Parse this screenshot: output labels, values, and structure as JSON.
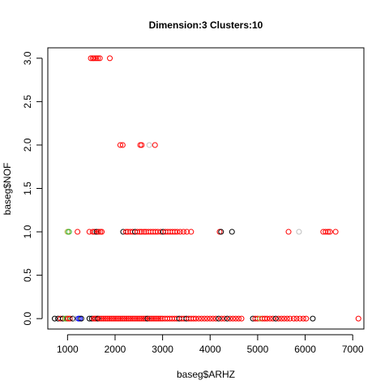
{
  "chart_data": {
    "type": "scatter",
    "title": "Dimension:3 Clusters:10",
    "xlabel": "baseg$ARHZ",
    "ylabel": "baseg$NOF",
    "xlim": [
      585,
      7235
    ],
    "ylim": [
      -0.12,
      3.12
    ],
    "x_ticks": [
      "1000",
      "2000",
      "3000",
      "4000",
      "5000",
      "6000",
      "7000"
    ],
    "x_tick_values": [
      1000,
      2000,
      3000,
      4000,
      5000,
      6000,
      7000
    ],
    "y_ticks": [
      "0.0",
      "0.5",
      "1.0",
      "1.5",
      "2.0",
      "2.5",
      "3.0"
    ],
    "y_tick_values": [
      0,
      0.5,
      1,
      1.5,
      2,
      2.5,
      3
    ],
    "grid": false,
    "marker": "open-circle",
    "colors": {
      "red": "#ff0000",
      "black": "#000000",
      "green": "#22b022",
      "blue": "#0000ff",
      "gray": "#bebebe",
      "olive": "#a0a020"
    },
    "points": [
      {
        "x": 1490,
        "y": 3,
        "c": "red"
      },
      {
        "x": 1530,
        "y": 3,
        "c": "red"
      },
      {
        "x": 1560,
        "y": 3,
        "c": "red"
      },
      {
        "x": 1600,
        "y": 3,
        "c": "red"
      },
      {
        "x": 1640,
        "y": 3,
        "c": "red"
      },
      {
        "x": 1680,
        "y": 3,
        "c": "red"
      },
      {
        "x": 1890,
        "y": 3,
        "c": "red"
      },
      {
        "x": 2110,
        "y": 2,
        "c": "red"
      },
      {
        "x": 2160,
        "y": 2,
        "c": "red"
      },
      {
        "x": 2530,
        "y": 2,
        "c": "red"
      },
      {
        "x": 2560,
        "y": 2,
        "c": "red"
      },
      {
        "x": 2720,
        "y": 2,
        "c": "gray"
      },
      {
        "x": 2840,
        "y": 2,
        "c": "red"
      },
      {
        "x": 1000,
        "y": 1,
        "c": "olive"
      },
      {
        "x": 1030,
        "y": 1,
        "c": "green"
      },
      {
        "x": 1210,
        "y": 1,
        "c": "red"
      },
      {
        "x": 1460,
        "y": 1,
        "c": "red"
      },
      {
        "x": 1530,
        "y": 1,
        "c": "red"
      },
      {
        "x": 1570,
        "y": 1,
        "c": "red"
      },
      {
        "x": 1610,
        "y": 1,
        "c": "black"
      },
      {
        "x": 1650,
        "y": 1,
        "c": "red"
      },
      {
        "x": 1690,
        "y": 1,
        "c": "red"
      },
      {
        "x": 1720,
        "y": 1,
        "c": "red"
      },
      {
        "x": 2170,
        "y": 1,
        "c": "black"
      },
      {
        "x": 2230,
        "y": 1,
        "c": "red"
      },
      {
        "x": 2270,
        "y": 1,
        "c": "red"
      },
      {
        "x": 2320,
        "y": 1,
        "c": "red"
      },
      {
        "x": 2370,
        "y": 1,
        "c": "red"
      },
      {
        "x": 2420,
        "y": 1,
        "c": "black"
      },
      {
        "x": 2470,
        "y": 1,
        "c": "red"
      },
      {
        "x": 2520,
        "y": 1,
        "c": "red"
      },
      {
        "x": 2560,
        "y": 1,
        "c": "red"
      },
      {
        "x": 2610,
        "y": 1,
        "c": "red"
      },
      {
        "x": 2650,
        "y": 1,
        "c": "red"
      },
      {
        "x": 2700,
        "y": 1,
        "c": "red"
      },
      {
        "x": 2750,
        "y": 1,
        "c": "red"
      },
      {
        "x": 2800,
        "y": 1,
        "c": "red"
      },
      {
        "x": 2850,
        "y": 1,
        "c": "red"
      },
      {
        "x": 2900,
        "y": 1,
        "c": "red"
      },
      {
        "x": 2960,
        "y": 1,
        "c": "red"
      },
      {
        "x": 3010,
        "y": 1,
        "c": "black"
      },
      {
        "x": 3060,
        "y": 1,
        "c": "red"
      },
      {
        "x": 3110,
        "y": 1,
        "c": "red"
      },
      {
        "x": 3160,
        "y": 1,
        "c": "red"
      },
      {
        "x": 3210,
        "y": 1,
        "c": "red"
      },
      {
        "x": 3260,
        "y": 1,
        "c": "red"
      },
      {
        "x": 3310,
        "y": 1,
        "c": "red"
      },
      {
        "x": 3370,
        "y": 1,
        "c": "red"
      },
      {
        "x": 3440,
        "y": 1,
        "c": "red"
      },
      {
        "x": 3510,
        "y": 1,
        "c": "red"
      },
      {
        "x": 3600,
        "y": 1,
        "c": "red"
      },
      {
        "x": 4200,
        "y": 1,
        "c": "red"
      },
      {
        "x": 4230,
        "y": 1,
        "c": "black"
      },
      {
        "x": 4460,
        "y": 1,
        "c": "black"
      },
      {
        "x": 5650,
        "y": 1,
        "c": "red"
      },
      {
        "x": 5870,
        "y": 1,
        "c": "gray"
      },
      {
        "x": 6380,
        "y": 1,
        "c": "red"
      },
      {
        "x": 6430,
        "y": 1,
        "c": "red"
      },
      {
        "x": 6480,
        "y": 1,
        "c": "red"
      },
      {
        "x": 6520,
        "y": 1,
        "c": "red"
      },
      {
        "x": 6640,
        "y": 1,
        "c": "red"
      },
      {
        "x": 730,
        "y": 0,
        "c": "black"
      },
      {
        "x": 800,
        "y": 0,
        "c": "black"
      },
      {
        "x": 850,
        "y": 0,
        "c": "red"
      },
      {
        "x": 900,
        "y": 0,
        "c": "black"
      },
      {
        "x": 950,
        "y": 0,
        "c": "olive"
      },
      {
        "x": 980,
        "y": 0,
        "c": "green"
      },
      {
        "x": 1010,
        "y": 0,
        "c": "red"
      },
      {
        "x": 1050,
        "y": 0,
        "c": "red"
      },
      {
        "x": 1110,
        "y": 0,
        "c": "black"
      },
      {
        "x": 1160,
        "y": 0,
        "c": "gray"
      },
      {
        "x": 1230,
        "y": 0,
        "c": "blue"
      },
      {
        "x": 1260,
        "y": 0,
        "c": "blue"
      },
      {
        "x": 1290,
        "y": 0,
        "c": "black"
      },
      {
        "x": 1460,
        "y": 0,
        "c": "black"
      },
      {
        "x": 1510,
        "y": 0,
        "c": "black"
      },
      {
        "x": 1550,
        "y": 0,
        "c": "red"
      },
      {
        "x": 1580,
        "y": 0,
        "c": "red"
      },
      {
        "x": 1610,
        "y": 0,
        "c": "red"
      },
      {
        "x": 1640,
        "y": 0,
        "c": "black"
      },
      {
        "x": 1680,
        "y": 0,
        "c": "red"
      },
      {
        "x": 1720,
        "y": 0,
        "c": "red"
      },
      {
        "x": 1760,
        "y": 0,
        "c": "red"
      },
      {
        "x": 1800,
        "y": 0,
        "c": "red"
      },
      {
        "x": 1840,
        "y": 0,
        "c": "red"
      },
      {
        "x": 1880,
        "y": 0,
        "c": "red"
      },
      {
        "x": 1920,
        "y": 0,
        "c": "red"
      },
      {
        "x": 1960,
        "y": 0,
        "c": "red"
      },
      {
        "x": 2000,
        "y": 0,
        "c": "red"
      },
      {
        "x": 2040,
        "y": 0,
        "c": "red"
      },
      {
        "x": 2080,
        "y": 0,
        "c": "red"
      },
      {
        "x": 2120,
        "y": 0,
        "c": "red"
      },
      {
        "x": 2160,
        "y": 0,
        "c": "red"
      },
      {
        "x": 2200,
        "y": 0,
        "c": "red"
      },
      {
        "x": 2240,
        "y": 0,
        "c": "red"
      },
      {
        "x": 2280,
        "y": 0,
        "c": "red"
      },
      {
        "x": 2320,
        "y": 0,
        "c": "red"
      },
      {
        "x": 2360,
        "y": 0,
        "c": "red"
      },
      {
        "x": 2400,
        "y": 0,
        "c": "red"
      },
      {
        "x": 2440,
        "y": 0,
        "c": "red"
      },
      {
        "x": 2480,
        "y": 0,
        "c": "red"
      },
      {
        "x": 2520,
        "y": 0,
        "c": "red"
      },
      {
        "x": 2560,
        "y": 0,
        "c": "red"
      },
      {
        "x": 2600,
        "y": 0,
        "c": "red"
      },
      {
        "x": 2640,
        "y": 0,
        "c": "red"
      },
      {
        "x": 2680,
        "y": 0,
        "c": "black"
      },
      {
        "x": 2720,
        "y": 0,
        "c": "red"
      },
      {
        "x": 2760,
        "y": 0,
        "c": "red"
      },
      {
        "x": 2800,
        "y": 0,
        "c": "red"
      },
      {
        "x": 2840,
        "y": 0,
        "c": "red"
      },
      {
        "x": 2880,
        "y": 0,
        "c": "red"
      },
      {
        "x": 2920,
        "y": 0,
        "c": "red"
      },
      {
        "x": 2960,
        "y": 0,
        "c": "red"
      },
      {
        "x": 3000,
        "y": 0,
        "c": "red"
      },
      {
        "x": 3050,
        "y": 0,
        "c": "red"
      },
      {
        "x": 3100,
        "y": 0,
        "c": "red"
      },
      {
        "x": 3150,
        "y": 0,
        "c": "red"
      },
      {
        "x": 3200,
        "y": 0,
        "c": "red"
      },
      {
        "x": 3250,
        "y": 0,
        "c": "red"
      },
      {
        "x": 3300,
        "y": 0,
        "c": "red"
      },
      {
        "x": 3350,
        "y": 0,
        "c": "black"
      },
      {
        "x": 3400,
        "y": 0,
        "c": "red"
      },
      {
        "x": 3450,
        "y": 0,
        "c": "red"
      },
      {
        "x": 3500,
        "y": 0,
        "c": "black"
      },
      {
        "x": 3550,
        "y": 0,
        "c": "red"
      },
      {
        "x": 3600,
        "y": 0,
        "c": "red"
      },
      {
        "x": 3650,
        "y": 0,
        "c": "red"
      },
      {
        "x": 3700,
        "y": 0,
        "c": "red"
      },
      {
        "x": 3760,
        "y": 0,
        "c": "red"
      },
      {
        "x": 3820,
        "y": 0,
        "c": "red"
      },
      {
        "x": 3880,
        "y": 0,
        "c": "red"
      },
      {
        "x": 3940,
        "y": 0,
        "c": "red"
      },
      {
        "x": 4000,
        "y": 0,
        "c": "red"
      },
      {
        "x": 4060,
        "y": 0,
        "c": "red"
      },
      {
        "x": 4120,
        "y": 0,
        "c": "red"
      },
      {
        "x": 4180,
        "y": 0,
        "c": "black"
      },
      {
        "x": 4240,
        "y": 0,
        "c": "red"
      },
      {
        "x": 4300,
        "y": 0,
        "c": "red"
      },
      {
        "x": 4360,
        "y": 0,
        "c": "black"
      },
      {
        "x": 4420,
        "y": 0,
        "c": "red"
      },
      {
        "x": 4480,
        "y": 0,
        "c": "red"
      },
      {
        "x": 4540,
        "y": 0,
        "c": "red"
      },
      {
        "x": 4600,
        "y": 0,
        "c": "red"
      },
      {
        "x": 4660,
        "y": 0,
        "c": "red"
      },
      {
        "x": 4900,
        "y": 0,
        "c": "black"
      },
      {
        "x": 4950,
        "y": 0,
        "c": "red"
      },
      {
        "x": 5000,
        "y": 0,
        "c": "red"
      },
      {
        "x": 5050,
        "y": 0,
        "c": "olive"
      },
      {
        "x": 5100,
        "y": 0,
        "c": "red"
      },
      {
        "x": 5150,
        "y": 0,
        "c": "red"
      },
      {
        "x": 5200,
        "y": 0,
        "c": "red"
      },
      {
        "x": 5260,
        "y": 0,
        "c": "red"
      },
      {
        "x": 5320,
        "y": 0,
        "c": "red"
      },
      {
        "x": 5380,
        "y": 0,
        "c": "black"
      },
      {
        "x": 5440,
        "y": 0,
        "c": "red"
      },
      {
        "x": 5500,
        "y": 0,
        "c": "red"
      },
      {
        "x": 5560,
        "y": 0,
        "c": "red"
      },
      {
        "x": 5620,
        "y": 0,
        "c": "red"
      },
      {
        "x": 5680,
        "y": 0,
        "c": "red"
      },
      {
        "x": 5760,
        "y": 0,
        "c": "red"
      },
      {
        "x": 5820,
        "y": 0,
        "c": "red"
      },
      {
        "x": 5890,
        "y": 0,
        "c": "red"
      },
      {
        "x": 5960,
        "y": 0,
        "c": "red"
      },
      {
        "x": 6020,
        "y": 0,
        "c": "red"
      },
      {
        "x": 6160,
        "y": 0,
        "c": "black"
      },
      {
        "x": 7120,
        "y": 0,
        "c": "red"
      }
    ]
  }
}
